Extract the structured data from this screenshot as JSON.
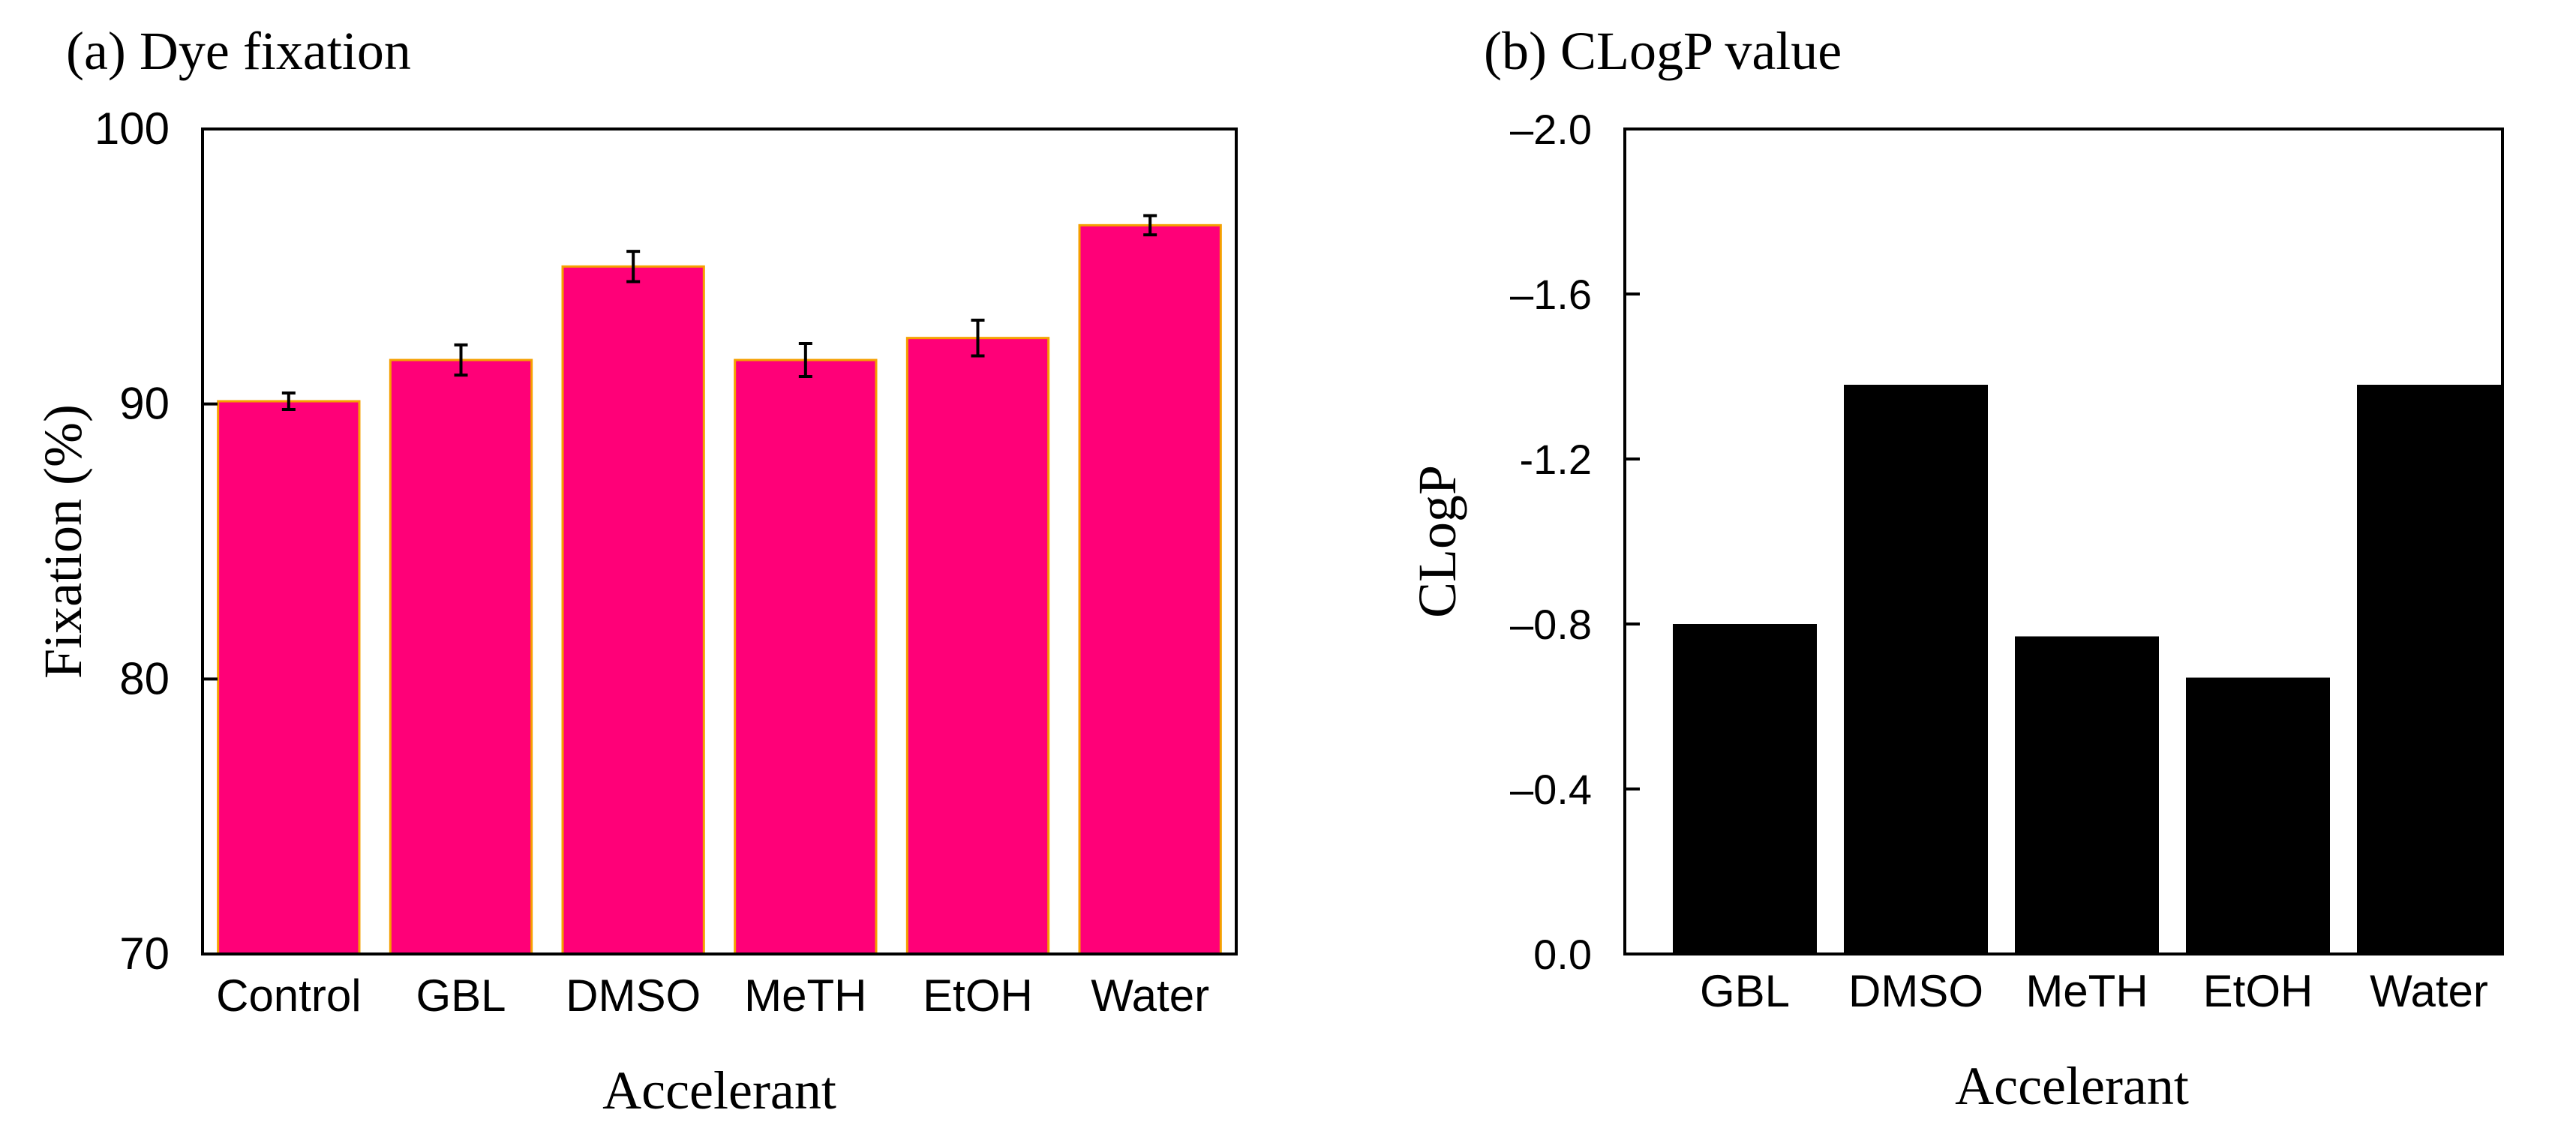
{
  "chart_data": [
    {
      "type": "bar",
      "panel_label": "(a)",
      "title": "Dye fixation",
      "xlabel": "Accelerant",
      "ylabel": "Fixation (%)",
      "categories": [
        "Control",
        "GBL",
        "DMSO",
        "MeTH",
        "EtOH",
        "Water"
      ],
      "values": [
        90.1,
        91.6,
        95.0,
        91.6,
        92.4,
        96.5
      ],
      "errors": [
        0.3,
        0.55,
        0.55,
        0.6,
        0.65,
        0.35
      ],
      "ylim": [
        70,
        100
      ],
      "yticks": [
        70,
        80,
        90,
        100
      ],
      "ytick_labels": [
        "70",
        "80",
        "90",
        "100"
      ],
      "bar_color": "#FF0078",
      "bar_edge_color": "#F5A000",
      "grid": false
    },
    {
      "type": "bar",
      "panel_label": "(b)",
      "title": "CLogP value",
      "xlabel": "Accelerant",
      "ylabel": "CLogP",
      "categories": [
        "GBL",
        "DMSO",
        "MeTH",
        "EtOH",
        "Water"
      ],
      "values": [
        -0.8,
        -1.38,
        -0.77,
        -0.67,
        -1.38
      ],
      "ylim": [
        0,
        -2.0
      ],
      "inverted_y": true,
      "yticks": [
        0,
        -0.4,
        -0.8,
        -1.2,
        -1.6,
        -2.0
      ],
      "ytick_labels": [
        "0.0",
        "–0.4",
        "–0.8",
        "-1.2",
        "–1.6",
        "–2.0"
      ],
      "bar_color": "#000000",
      "grid": false
    }
  ]
}
